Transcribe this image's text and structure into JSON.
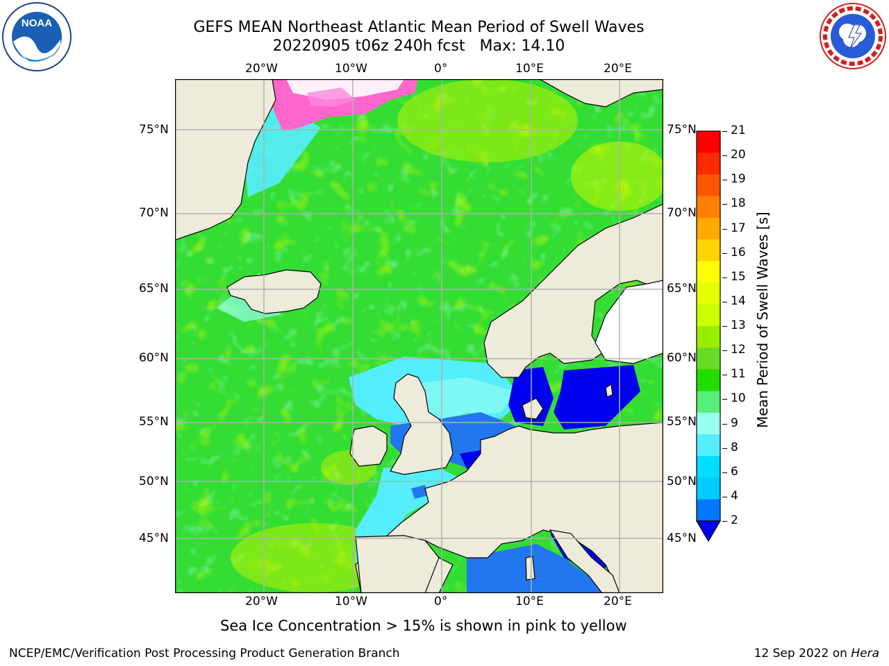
{
  "header": {
    "title_line1": "GEFS MEAN Northeast Atlantic Mean Period of Swell Waves",
    "title_line2": "20220905 t06z 240h fcst   Max: 14.10"
  },
  "logos": {
    "noaa": {
      "text": "NOAA",
      "ring_text": "NATIONAL OCEANIC AND ATMOSPHERIC ADMINISTRATION · U.S. DEPARTMENT OF COMMERCE"
    },
    "nws": {
      "ring_text": "NATIONAL WEATHER SERVICE"
    }
  },
  "map": {
    "lon_ticks": [
      "20°W",
      "10°W",
      "0°",
      "10°E",
      "20°E"
    ],
    "lat_ticks_left": [
      "75°N",
      "70°N",
      "65°N",
      "60°N",
      "55°N",
      "50°N",
      "45°N"
    ],
    "lat_ticks_right": [
      "75°N",
      "70°N",
      "65°N",
      "60°N",
      "55°N",
      "50°N",
      "45°N"
    ],
    "land_color": "#efebdb",
    "ocean_dominant_color": "#33dd33"
  },
  "colorbar": {
    "label": "Mean Period of Swell Waves [s]",
    "ticks": [
      "21",
      "20",
      "19",
      "18",
      "17",
      "16",
      "15",
      "14",
      "13",
      "12",
      "11",
      "10",
      "9",
      "8",
      "6",
      "4",
      "2"
    ],
    "colors_top_to_bottom": [
      "#ff0000",
      "#ff2a00",
      "#ff5500",
      "#ff7f00",
      "#ffaa00",
      "#ffd400",
      "#ffff00",
      "#e6ff00",
      "#ccff00",
      "#99ee00",
      "#66dd22",
      "#22dd00",
      "#55ee77",
      "#99ffee",
      "#55eeff",
      "#00ddff",
      "#00ccff",
      "#0077ff"
    ],
    "extend_color": "#0000ee"
  },
  "caption": "Sea Ice Concentration > 15% is shown in pink to yellow",
  "footer": {
    "left": "NCEP/EMC/Verification Post Processing Product Generation Branch",
    "right_date": "12 Sep 2022 on ",
    "right_host": "Hera"
  }
}
